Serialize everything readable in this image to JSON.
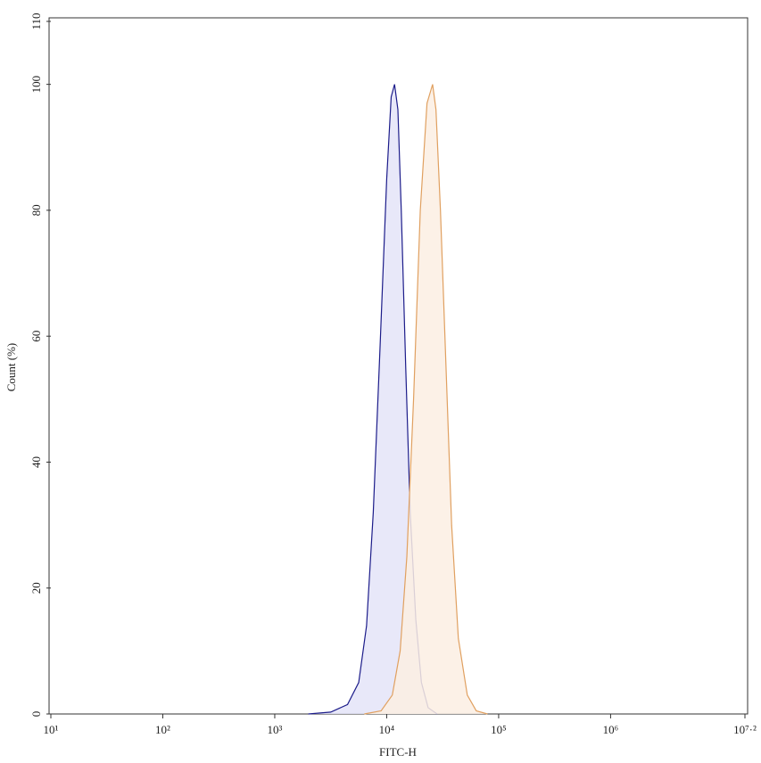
{
  "chart_data": {
    "type": "line",
    "x_label": "FITC-H",
    "y_label": "Count (%)",
    "xscale": "log",
    "xlim": [
      10,
      15848932
    ],
    "ylim": [
      0,
      110
    ],
    "xticks": [
      {
        "value": 10,
        "label": "10¹"
      },
      {
        "value": 100,
        "label": "10²"
      },
      {
        "value": 1000,
        "label": "10³"
      },
      {
        "value": 10000,
        "label": "10⁴"
      },
      {
        "value": 100000,
        "label": "10⁵"
      },
      {
        "value": 1000000,
        "label": "10⁶"
      },
      {
        "value": 15848932,
        "label": "10⁷·²"
      }
    ],
    "yticks": [
      0,
      20,
      40,
      60,
      80,
      100,
      110
    ],
    "series": [
      {
        "color": "#1c1c8a",
        "fill": "#e4e4f8",
        "x": [
          1995,
          3162,
          4467,
          5623,
          6607,
          7586,
          8710,
          10000,
          10965,
          11749,
          12589,
          13490,
          14791,
          16218,
          18197,
          20417,
          23442,
          28184
        ],
        "values": [
          0,
          0.3,
          1.5,
          5,
          14,
          32,
          58,
          85,
          98,
          100,
          96,
          80,
          55,
          32,
          15,
          5,
          1,
          0
        ]
      },
      {
        "color": "#e0a060",
        "fill": "#fcefe3",
        "x": [
          6310,
          8913,
          11220,
          13183,
          15136,
          17378,
          19953,
          22909,
          25704,
          27542,
          30200,
          33884,
          38019,
          43652,
          52481,
          63096,
          79433
        ],
        "values": [
          0,
          0.5,
          3,
          10,
          25,
          50,
          80,
          97,
          100,
          96,
          80,
          55,
          30,
          12,
          3,
          0.5,
          0
        ]
      }
    ]
  }
}
